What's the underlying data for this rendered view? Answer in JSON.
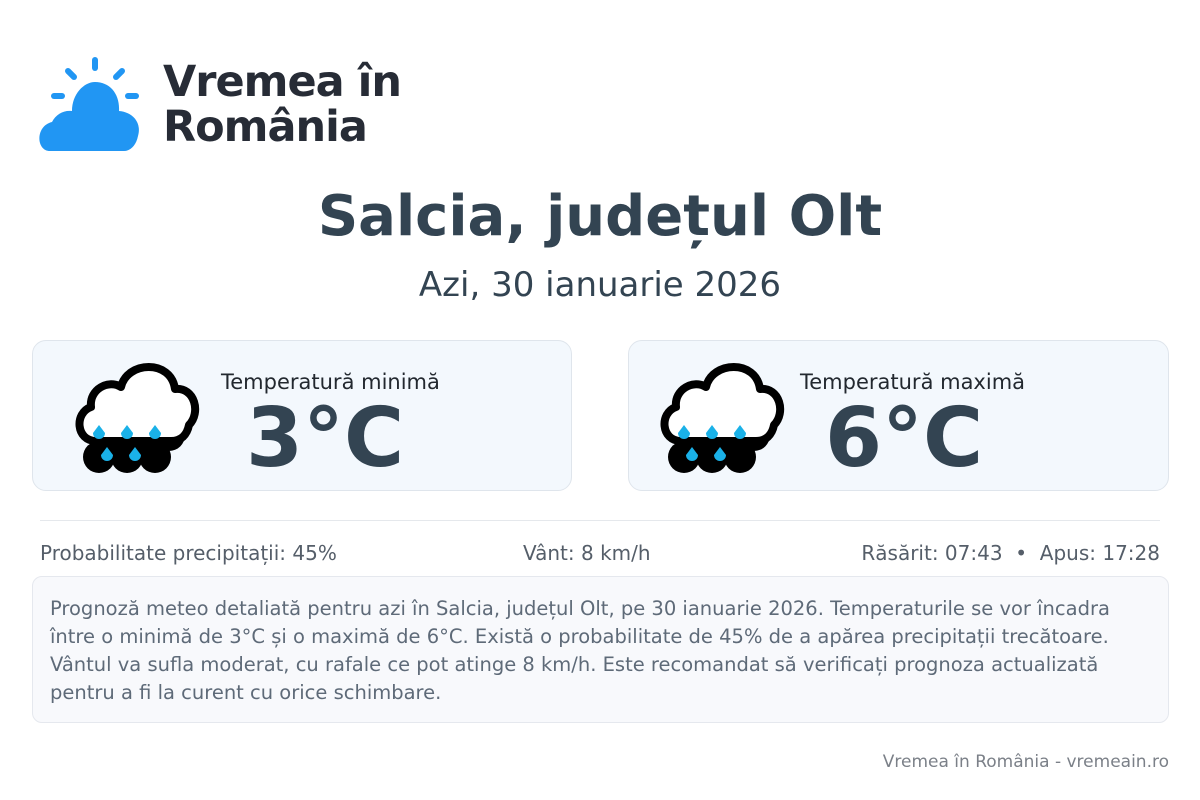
{
  "logo": {
    "text_line1": "Vremea în",
    "text_line2": "România",
    "color": "#2196f3"
  },
  "header": {
    "title": "Salcia, județul Olt",
    "date": "Azi, 30 ianuarie 2026"
  },
  "cards": [
    {
      "label": "Temperatură minimă",
      "value": "3°C",
      "icon": "rain-cloud-icon"
    },
    {
      "label": "Temperatură maximă",
      "value": "6°C",
      "icon": "rain-cloud-icon"
    }
  ],
  "stats": {
    "precip": "Probabilitate precipitații: 45%",
    "wind": "Vânt: 8 km/h",
    "sun": "Răsărit: 07:43  •  Apus: 17:28"
  },
  "description": "Prognoză meteo detaliată pentru azi în Salcia, județul Olt, pe 30 ianuarie 2026. Temperaturile se vor încadra între o minimă de 3°C și o maximă de 6°C. Există o probabilitate de 45% de a apărea precipitații trecătoare. Vântul va sufla moderat, cu rafale ce pot atinge 8 km/h. Este recomandat să verificați prognoza actualizată pentru a fi la curent cu orice schimbare.",
  "footer": "Vremea în România - vremeain.ro"
}
